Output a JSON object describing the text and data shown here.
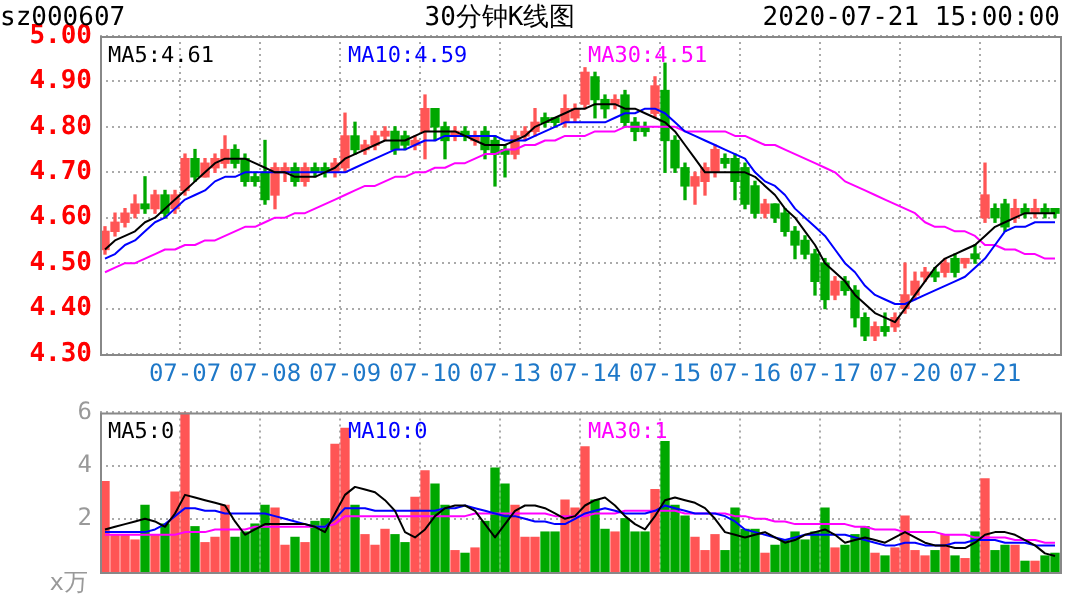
{
  "chart_data": [
    {
      "type": "candlestick",
      "title": "30分钟K线图",
      "annotations": [
        "sz000607",
        "2020-07-21 15:00:00"
      ],
      "legend": "top",
      "grid": true,
      "categories": [
        null,
        null,
        null,
        null,
        null,
        null,
        null,
        null,
        "07-07",
        null,
        null,
        null,
        null,
        null,
        null,
        null,
        "07-08",
        null,
        null,
        null,
        null,
        null,
        null,
        null,
        "07-09",
        null,
        null,
        null,
        null,
        null,
        null,
        null,
        "07-10",
        null,
        null,
        null,
        null,
        null,
        null,
        null,
        "07-13",
        null,
        null,
        null,
        null,
        null,
        null,
        null,
        "07-14",
        null,
        null,
        null,
        null,
        null,
        null,
        null,
        "07-15",
        null,
        null,
        null,
        null,
        null,
        null,
        null,
        "07-16",
        null,
        null,
        null,
        null,
        null,
        null,
        null,
        "07-17",
        null,
        null,
        null,
        null,
        null,
        null,
        null,
        "07-20",
        null,
        null,
        null,
        null,
        null,
        null,
        null,
        "07-21",
        null,
        null,
        null,
        null,
        null,
        null,
        null
      ],
      "ylim": [
        4.3,
        5.0
      ],
      "yticks": [
        {
          "value": 4.3,
          "label": "4.30"
        },
        {
          "value": 4.4,
          "label": "4.40"
        },
        {
          "value": 4.5,
          "label": "4.50"
        },
        {
          "value": 4.6,
          "label": "4.60"
        },
        {
          "value": 4.7,
          "label": "4.70"
        },
        {
          "value": 4.8,
          "label": "4.80"
        },
        {
          "value": 4.9,
          "label": "4.90"
        },
        {
          "value": 5.0,
          "label": "5.00"
        }
      ],
      "ohlc": [
        [
          4.53,
          4.58,
          4.52,
          4.57
        ],
        [
          4.57,
          4.61,
          4.56,
          4.59
        ],
        [
          4.59,
          4.62,
          4.58,
          4.61
        ],
        [
          4.61,
          4.65,
          4.6,
          4.63
        ],
        [
          4.63,
          4.69,
          4.61,
          4.62
        ],
        [
          4.62,
          4.66,
          4.61,
          4.65
        ],
        [
          4.65,
          4.66,
          4.6,
          4.61
        ],
        [
          4.62,
          4.66,
          4.61,
          4.65
        ],
        [
          4.66,
          4.74,
          4.65,
          4.73
        ],
        [
          4.73,
          4.75,
          4.68,
          4.69
        ],
        [
          4.69,
          4.73,
          4.69,
          4.72
        ],
        [
          4.71,
          4.74,
          4.7,
          4.73
        ],
        [
          4.72,
          4.78,
          4.71,
          4.75
        ],
        [
          4.75,
          4.76,
          4.71,
          4.72
        ],
        [
          4.73,
          4.74,
          4.67,
          4.68
        ],
        [
          4.69,
          4.7,
          4.67,
          4.68
        ],
        [
          4.7,
          4.77,
          4.63,
          4.64
        ],
        [
          4.65,
          4.72,
          4.62,
          4.71
        ],
        [
          4.7,
          4.72,
          4.68,
          4.71
        ],
        [
          4.71,
          4.72,
          4.67,
          4.68
        ],
        [
          4.68,
          4.72,
          4.67,
          4.71
        ],
        [
          4.71,
          4.72,
          4.69,
          4.7
        ],
        [
          4.71,
          4.72,
          4.69,
          4.7
        ],
        [
          4.7,
          4.73,
          4.69,
          4.72
        ],
        [
          4.71,
          4.83,
          4.7,
          4.78
        ],
        [
          4.78,
          4.81,
          4.74,
          4.75
        ],
        [
          4.75,
          4.77,
          4.74,
          4.76
        ],
        [
          4.76,
          4.79,
          4.75,
          4.78
        ],
        [
          4.78,
          4.8,
          4.77,
          4.79
        ],
        [
          4.79,
          4.8,
          4.74,
          4.75
        ],
        [
          4.78,
          4.79,
          4.75,
          4.76
        ],
        [
          4.76,
          4.78,
          4.75,
          4.77
        ],
        [
          4.79,
          4.87,
          4.73,
          4.84
        ],
        [
          4.84,
          4.84,
          4.77,
          4.8
        ],
        [
          4.8,
          4.81,
          4.73,
          4.77
        ],
        [
          4.78,
          4.8,
          4.77,
          4.79
        ],
        [
          4.79,
          4.8,
          4.77,
          4.78
        ],
        [
          4.77,
          4.79,
          4.76,
          4.78
        ],
        [
          4.79,
          4.8,
          4.73,
          4.75
        ],
        [
          4.77,
          4.78,
          4.67,
          4.74
        ],
        [
          4.75,
          4.76,
          4.69,
          4.74
        ],
        [
          4.74,
          4.79,
          4.73,
          4.78
        ],
        [
          4.78,
          4.8,
          4.77,
          4.79
        ],
        [
          4.79,
          4.84,
          4.78,
          4.81
        ],
        [
          4.82,
          4.83,
          4.8,
          4.81
        ],
        [
          4.82,
          4.82,
          4.8,
          4.81
        ],
        [
          4.81,
          4.87,
          4.8,
          4.84
        ],
        [
          4.82,
          4.85,
          4.81,
          4.84
        ],
        [
          4.85,
          4.93,
          4.84,
          4.92
        ],
        [
          4.91,
          4.92,
          4.82,
          4.86
        ],
        [
          4.86,
          4.87,
          4.82,
          4.84
        ],
        [
          4.85,
          4.87,
          4.84,
          4.86
        ],
        [
          4.87,
          4.88,
          4.8,
          4.81
        ],
        [
          4.81,
          4.82,
          4.77,
          4.79
        ],
        [
          4.8,
          4.81,
          4.78,
          4.79
        ],
        [
          4.83,
          4.91,
          4.82,
          4.89
        ],
        [
          4.88,
          4.94,
          4.7,
          4.77
        ],
        [
          4.77,
          4.78,
          4.7,
          4.71
        ],
        [
          4.71,
          4.72,
          4.64,
          4.67
        ],
        [
          4.67,
          4.7,
          4.63,
          4.69
        ],
        [
          4.68,
          4.72,
          4.65,
          4.71
        ],
        [
          4.7,
          4.76,
          4.69,
          4.75
        ],
        [
          4.73,
          4.74,
          4.71,
          4.72
        ],
        [
          4.73,
          4.74,
          4.64,
          4.68
        ],
        [
          4.71,
          4.72,
          4.62,
          4.63
        ],
        [
          4.67,
          4.68,
          4.6,
          4.61
        ],
        [
          4.61,
          4.64,
          4.6,
          4.63
        ],
        [
          4.63,
          4.63,
          4.59,
          4.6
        ],
        [
          4.61,
          4.62,
          4.56,
          4.57
        ],
        [
          4.57,
          4.58,
          4.51,
          4.54
        ],
        [
          4.55,
          4.56,
          4.51,
          4.52
        ],
        [
          4.52,
          4.53,
          4.43,
          4.46
        ],
        [
          4.5,
          4.51,
          4.4,
          4.42
        ],
        [
          4.43,
          4.47,
          4.42,
          4.46
        ],
        [
          4.46,
          4.47,
          4.43,
          4.44
        ],
        [
          4.44,
          4.45,
          4.36,
          4.38
        ],
        [
          4.38,
          4.39,
          4.33,
          4.34
        ],
        [
          4.34,
          4.37,
          4.33,
          4.36
        ],
        [
          4.36,
          4.39,
          4.34,
          4.35
        ],
        [
          4.36,
          4.39,
          4.35,
          4.38
        ],
        [
          4.4,
          4.5,
          4.39,
          4.43
        ],
        [
          4.43,
          4.48,
          4.42,
          4.46
        ],
        [
          4.47,
          4.49,
          4.46,
          4.48
        ],
        [
          4.48,
          4.49,
          4.46,
          4.47
        ],
        [
          4.48,
          4.51,
          4.47,
          4.5
        ],
        [
          4.51,
          4.52,
          4.47,
          4.48
        ],
        [
          4.5,
          4.51,
          4.49,
          4.51
        ],
        [
          4.52,
          4.54,
          4.5,
          4.51
        ],
        [
          4.6,
          4.72,
          4.59,
          4.65
        ],
        [
          4.62,
          4.63,
          4.59,
          4.6
        ],
        [
          4.63,
          4.64,
          4.57,
          4.58
        ],
        [
          4.6,
          4.64,
          4.59,
          4.62
        ],
        [
          4.62,
          4.63,
          4.6,
          4.61
        ],
        [
          4.61,
          4.64,
          4.6,
          4.62
        ],
        [
          4.62,
          4.63,
          4.6,
          4.61
        ],
        [
          4.62,
          4.62,
          4.6,
          4.61
        ]
      ],
      "colors": [
        "#ff5555",
        "#ff5555",
        "#ff5555",
        "#ff5555",
        "#00a800",
        "#ff5555",
        "#00a800",
        "#ff5555",
        "#ff5555",
        "#00a800",
        "#ff5555",
        "#ff5555",
        "#ff5555",
        "#00a800",
        "#00a800",
        "#00a800",
        "#00a800",
        "#ff5555",
        "#ff5555",
        "#00a800",
        "#ff5555",
        "#00a800",
        "#00a800",
        "#ff5555",
        "#ff5555",
        "#00a800",
        "#ff5555",
        "#ff5555",
        "#ff5555",
        "#00a800",
        "#00a800",
        "#ff5555",
        "#ff5555",
        "#00a800",
        "#00a800",
        "#ff5555",
        "#00a800",
        "#ff5555",
        "#00a800",
        "#00a800",
        "#00a800",
        "#ff5555",
        "#ff5555",
        "#ff5555",
        "#00a800",
        "#00a800",
        "#ff5555",
        "#ff5555",
        "#ff5555",
        "#00a800",
        "#00a800",
        "#ff5555",
        "#00a800",
        "#00a800",
        "#00a800",
        "#ff5555",
        "#00a800",
        "#00a800",
        "#00a800",
        "#ff5555",
        "#ff5555",
        "#ff5555",
        "#00a800",
        "#00a800",
        "#00a800",
        "#00a800",
        "#ff5555",
        "#00a800",
        "#00a800",
        "#00a800",
        "#00a800",
        "#00a800",
        "#00a800",
        "#ff5555",
        "#00a800",
        "#00a800",
        "#00a800",
        "#ff5555",
        "#00a800",
        "#ff5555",
        "#ff5555",
        "#ff5555",
        "#ff5555",
        "#00a800",
        "#ff5555",
        "#00a800",
        "#ff5555",
        "#00a800",
        "#ff5555",
        "#00a800",
        "#00a800",
        "#ff5555",
        "#00a800",
        "#ff5555",
        "#00a800",
        "#00a800"
      ],
      "series": [
        {
          "type": "line",
          "name": "MA5:4.61",
          "color": "#000000",
          "values": [
            4.53,
            4.55,
            4.56,
            4.57,
            4.59,
            4.6,
            4.62,
            4.64,
            4.66,
            4.68,
            4.7,
            4.72,
            4.73,
            4.73,
            4.73,
            4.72,
            4.71,
            4.7,
            4.7,
            4.69,
            4.69,
            4.69,
            4.7,
            4.71,
            4.73,
            4.74,
            4.75,
            4.76,
            4.77,
            4.77,
            4.77,
            4.78,
            4.79,
            4.79,
            4.79,
            4.79,
            4.78,
            4.77,
            4.76,
            4.76,
            4.76,
            4.77,
            4.78,
            4.8,
            4.81,
            4.82,
            4.83,
            4.84,
            4.84,
            4.85,
            4.85,
            4.85,
            4.84,
            4.84,
            4.83,
            4.82,
            4.81,
            4.79,
            4.76,
            4.73,
            4.7,
            4.7,
            4.7,
            4.7,
            4.7,
            4.69,
            4.67,
            4.65,
            4.62,
            4.6,
            4.57,
            4.54,
            4.5,
            4.48,
            4.46,
            4.43,
            4.41,
            4.39,
            4.38,
            4.37,
            4.4,
            4.43,
            4.46,
            4.49,
            4.51,
            4.52,
            4.53,
            4.54,
            4.56,
            4.58,
            4.59,
            4.6,
            4.61,
            4.61,
            4.61,
            4.61
          ]
        },
        {
          "type": "line",
          "name": "MA10:4.59",
          "color": "#0000ff",
          "values": [
            4.51,
            4.52,
            4.54,
            4.55,
            4.57,
            4.59,
            4.6,
            4.62,
            4.64,
            4.65,
            4.66,
            4.68,
            4.69,
            4.69,
            4.7,
            4.7,
            4.7,
            4.7,
            4.7,
            4.7,
            4.7,
            4.7,
            4.7,
            4.7,
            4.7,
            4.71,
            4.72,
            4.73,
            4.74,
            4.75,
            4.75,
            4.76,
            4.77,
            4.77,
            4.78,
            4.78,
            4.78,
            4.78,
            4.78,
            4.78,
            4.77,
            4.77,
            4.77,
            4.78,
            4.79,
            4.8,
            4.81,
            4.81,
            4.81,
            4.81,
            4.81,
            4.82,
            4.83,
            4.83,
            4.84,
            4.84,
            4.83,
            4.81,
            4.79,
            4.78,
            4.77,
            4.76,
            4.75,
            4.74,
            4.73,
            4.7,
            4.68,
            4.67,
            4.65,
            4.62,
            4.6,
            4.58,
            4.56,
            4.53,
            4.5,
            4.48,
            4.45,
            4.43,
            4.42,
            4.41,
            4.41,
            4.42,
            4.43,
            4.44,
            4.45,
            4.46,
            4.47,
            4.49,
            4.51,
            4.54,
            4.57,
            4.58,
            4.58,
            4.59,
            4.59,
            4.59
          ]
        },
        {
          "type": "line",
          "name": "MA30:4.51",
          "color": "#ff00ff",
          "values": [
            4.48,
            4.49,
            4.5,
            4.5,
            4.51,
            4.52,
            4.53,
            4.53,
            4.54,
            4.54,
            4.55,
            4.55,
            4.56,
            4.57,
            4.58,
            4.58,
            4.59,
            4.6,
            4.6,
            4.61,
            4.61,
            4.62,
            4.63,
            4.64,
            4.65,
            4.66,
            4.67,
            4.67,
            4.68,
            4.69,
            4.69,
            4.7,
            4.7,
            4.71,
            4.71,
            4.72,
            4.72,
            4.73,
            4.74,
            4.74,
            4.75,
            4.75,
            4.76,
            4.76,
            4.77,
            4.77,
            4.78,
            4.78,
            4.78,
            4.79,
            4.79,
            4.79,
            4.8,
            4.8,
            4.8,
            4.8,
            4.8,
            4.8,
            4.79,
            4.79,
            4.79,
            4.79,
            4.79,
            4.78,
            4.78,
            4.77,
            4.76,
            4.76,
            4.75,
            4.74,
            4.73,
            4.72,
            4.71,
            4.7,
            4.68,
            4.67,
            4.66,
            4.65,
            4.64,
            4.63,
            4.62,
            4.61,
            4.59,
            4.58,
            4.58,
            4.57,
            4.57,
            4.56,
            4.54,
            4.54,
            4.53,
            4.53,
            4.52,
            4.52,
            4.51,
            4.51
          ]
        }
      ]
    },
    {
      "type": "bar",
      "ylabel": "x万",
      "legend": "top",
      "grid": true,
      "tick_labels": "y",
      "categories": [
        null,
        null,
        null,
        null,
        null,
        null,
        null,
        null,
        null,
        null,
        null,
        null,
        null,
        null,
        null,
        null,
        null,
        null,
        null,
        null,
        null,
        null,
        null,
        null,
        null,
        null,
        null,
        null,
        null,
        null,
        null,
        null,
        null,
        null,
        null,
        null,
        null,
        null,
        null,
        null,
        null,
        null,
        null,
        null,
        null,
        null,
        null,
        null,
        null,
        null,
        null,
        null,
        null,
        null,
        null,
        null,
        null,
        null,
        null,
        null,
        null,
        null,
        null,
        null,
        null,
        null,
        null,
        null,
        null,
        null,
        null,
        null,
        null,
        null,
        null,
        null,
        null,
        null,
        null,
        null,
        null,
        null,
        null,
        null,
        null,
        null,
        null,
        null,
        null,
        null,
        null,
        null,
        null,
        null,
        null,
        null
      ],
      "ylim": [
        0,
        6
      ],
      "yticks": [
        2,
        4,
        6
      ],
      "series": [
        {
          "type": "bar",
          "values": [
            3.4,
            1.4,
            1.4,
            1.2,
            2.5,
            1.4,
            1.8,
            3.0,
            6.0,
            1.7,
            1.1,
            1.3,
            2.5,
            1.3,
            1.5,
            1.8,
            2.5,
            2.4,
            1.0,
            1.3,
            1.1,
            1.9,
            2.0,
            4.8,
            5.4,
            2.5,
            1.4,
            1.0,
            1.6,
            1.4,
            1.1,
            2.8,
            3.8,
            3.3,
            2.5,
            0.8,
            0.7,
            0.9,
            1.9,
            3.9,
            3.3,
            2.5,
            1.3,
            1.3,
            1.5,
            1.5,
            2.7,
            2.4,
            4.7,
            2.7,
            1.6,
            1.5,
            2.0,
            1.5,
            1.5,
            3.1,
            4.9,
            2.5,
            2.1,
            1.3,
            0.8,
            1.4,
            0.8,
            2.4,
            1.6,
            1.6,
            0.7,
            1.0,
            1.2,
            1.5,
            1.2,
            1.5,
            2.4,
            0.9,
            1.0,
            1.4,
            1.7,
            0.7,
            0.6,
            0.9,
            2.1,
            0.8,
            0.6,
            0.8,
            1.4,
            0.6,
            0.5,
            1.5,
            3.5,
            0.8,
            1.0,
            1.0,
            0.4,
            0.4,
            0.6,
            0.7
          ],
          "colors": [
            "#ff5555",
            "#ff5555",
            "#ff5555",
            "#ff5555",
            "#00a800",
            "#ff5555",
            "#00a800",
            "#ff5555",
            "#ff5555",
            "#00a800",
            "#ff5555",
            "#ff5555",
            "#ff5555",
            "#00a800",
            "#00a800",
            "#00a800",
            "#00a800",
            "#ff5555",
            "#ff5555",
            "#00a800",
            "#ff5555",
            "#00a800",
            "#00a800",
            "#ff5555",
            "#ff5555",
            "#00a800",
            "#ff5555",
            "#ff5555",
            "#ff5555",
            "#00a800",
            "#00a800",
            "#ff5555",
            "#ff5555",
            "#00a800",
            "#00a800",
            "#ff5555",
            "#00a800",
            "#ff5555",
            "#00a800",
            "#00a800",
            "#00a800",
            "#ff5555",
            "#ff5555",
            "#ff5555",
            "#00a800",
            "#00a800",
            "#ff5555",
            "#ff5555",
            "#ff5555",
            "#00a800",
            "#00a800",
            "#ff5555",
            "#00a800",
            "#00a800",
            "#00a800",
            "#ff5555",
            "#00a800",
            "#00a800",
            "#00a800",
            "#ff5555",
            "#ff5555",
            "#ff5555",
            "#00a800",
            "#00a800",
            "#00a800",
            "#00a800",
            "#ff5555",
            "#00a800",
            "#00a800",
            "#00a800",
            "#00a800",
            "#00a800",
            "#00a800",
            "#ff5555",
            "#00a800",
            "#00a800",
            "#00a800",
            "#ff5555",
            "#00a800",
            "#ff5555",
            "#ff5555",
            "#ff5555",
            "#ff5555",
            "#00a800",
            "#ff5555",
            "#00a800",
            "#ff5555",
            "#00a800",
            "#ff5555",
            "#00a800",
            "#00a800",
            "#ff5555",
            "#00a800",
            "#ff5555",
            "#00a800",
            "#00a800"
          ]
        },
        {
          "type": "line",
          "name": "MA5:0",
          "color": "#000000",
          "values": [
            1.6,
            1.7,
            1.8,
            1.9,
            2.0,
            1.9,
            1.7,
            2.2,
            2.9,
            2.8,
            2.7,
            2.6,
            2.5,
            1.9,
            1.4,
            1.6,
            1.8,
            1.8,
            1.8,
            1.8,
            1.8,
            1.7,
            1.5,
            2.2,
            2.9,
            3.2,
            3.1,
            3.0,
            2.7,
            2.3,
            1.5,
            1.3,
            1.6,
            2.1,
            2.4,
            2.5,
            2.5,
            2.3,
            1.8,
            1.3,
            1.8,
            2.3,
            2.5,
            2.5,
            2.4,
            2.2,
            2.0,
            2.1,
            2.5,
            2.7,
            2.8,
            2.5,
            2.1,
            1.8,
            1.6,
            2.1,
            2.7,
            2.8,
            2.7,
            2.6,
            2.4,
            2.0,
            1.5,
            1.4,
            1.3,
            1.4,
            1.5,
            1.3,
            1.1,
            1.2,
            1.4,
            1.5,
            1.6,
            1.4,
            1.1,
            1.2,
            1.3,
            1.2,
            1.1,
            1.3,
            1.5,
            1.3,
            1.1,
            1.0,
            1.0,
            0.9,
            0.9,
            1.1,
            1.4,
            1.5,
            1.5,
            1.4,
            1.2,
            1.0,
            0.7,
            0.6
          ]
        },
        {
          "type": "line",
          "name": "MA10:0",
          "color": "#0000ff",
          "values": [
            1.5,
            1.5,
            1.5,
            1.5,
            1.5,
            1.6,
            1.8,
            2.1,
            2.4,
            2.4,
            2.3,
            2.3,
            2.2,
            2.2,
            2.2,
            2.2,
            2.2,
            2.1,
            2.0,
            1.9,
            1.8,
            1.7,
            1.7,
            2.0,
            2.4,
            2.4,
            2.4,
            2.3,
            2.3,
            2.3,
            2.3,
            2.3,
            2.3,
            2.3,
            2.4,
            2.4,
            2.5,
            2.4,
            2.3,
            2.2,
            2.1,
            2.1,
            2.0,
            1.9,
            1.9,
            1.8,
            1.8,
            2.0,
            2.2,
            2.3,
            2.4,
            2.3,
            2.2,
            2.2,
            2.2,
            2.3,
            2.5,
            2.4,
            2.3,
            2.2,
            2.2,
            2.2,
            2.1,
            1.9,
            1.6,
            1.5,
            1.4,
            1.3,
            1.2,
            1.3,
            1.4,
            1.4,
            1.4,
            1.4,
            1.4,
            1.3,
            1.2,
            1.1,
            1.0,
            1.0,
            1.1,
            1.1,
            1.0,
            1.0,
            1.0,
            1.1,
            1.1,
            1.2,
            1.2,
            1.2,
            1.1,
            1.1,
            1.1,
            1.0,
            1.0,
            1.0
          ]
        },
        {
          "type": "line",
          "name": "MA30:1",
          "color": "#ff00ff",
          "values": [
            1.4,
            1.4,
            1.4,
            1.4,
            1.4,
            1.4,
            1.4,
            1.4,
            1.5,
            1.5,
            1.5,
            1.6,
            1.6,
            1.6,
            1.6,
            1.7,
            1.7,
            1.7,
            1.7,
            1.7,
            1.7,
            1.7,
            1.7,
            1.8,
            2.1,
            2.1,
            2.1,
            2.1,
            2.1,
            2.1,
            2.1,
            2.1,
            2.1,
            2.1,
            2.1,
            2.1,
            2.1,
            2.2,
            2.2,
            2.2,
            2.2,
            2.2,
            2.2,
            2.2,
            2.2,
            2.1,
            2.1,
            2.1,
            2.1,
            2.2,
            2.2,
            2.2,
            2.3,
            2.3,
            2.3,
            2.3,
            2.3,
            2.3,
            2.2,
            2.2,
            2.2,
            2.2,
            2.2,
            2.1,
            2.1,
            2.0,
            2.0,
            1.9,
            1.9,
            1.8,
            1.8,
            1.8,
            1.8,
            1.8,
            1.8,
            1.7,
            1.7,
            1.6,
            1.6,
            1.6,
            1.5,
            1.5,
            1.5,
            1.5,
            1.4,
            1.4,
            1.4,
            1.3,
            1.3,
            1.3,
            1.3,
            1.2,
            1.2,
            1.2,
            1.1,
            1.1
          ]
        }
      ]
    }
  ]
}
